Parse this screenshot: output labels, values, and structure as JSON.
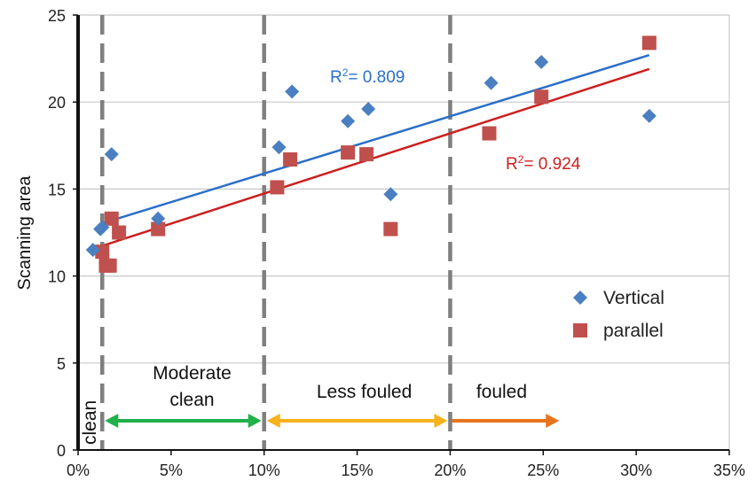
{
  "chart_data": {
    "type": "scatter",
    "title": "",
    "xlabel": "",
    "ylabel": "Scanning area",
    "xlim": [
      0,
      35
    ],
    "ylim": [
      0,
      25
    ],
    "xticks": [
      "0%",
      "5%",
      "10%",
      "15%",
      "20%",
      "25%",
      "30%",
      "35%"
    ],
    "yticks": [
      "0",
      "5",
      "10",
      "15",
      "20",
      "25"
    ],
    "grid": "horizontal",
    "legend_position": "right",
    "series": [
      {
        "name": "Vertical",
        "marker": "diamond",
        "color": "#4a7fc1",
        "points": [
          [
            0.8,
            11.5
          ],
          [
            1.2,
            12.7
          ],
          [
            1.3,
            12.8
          ],
          [
            1.8,
            17.0
          ],
          [
            4.3,
            13.3
          ],
          [
            10.8,
            17.4
          ],
          [
            11.5,
            20.6
          ],
          [
            14.5,
            18.9
          ],
          [
            15.6,
            19.6
          ],
          [
            16.8,
            14.7
          ],
          [
            22.2,
            21.1
          ],
          [
            24.9,
            22.3
          ],
          [
            30.7,
            19.2
          ]
        ],
        "fit": {
          "r2_label": "R",
          "r2_sup": "2",
          "r2_value": "= 0.809",
          "line_color": "#2a6fc9",
          "from": [
            1.2,
            13.0
          ],
          "to": [
            30.7,
            22.7
          ]
        }
      },
      {
        "name": "parallel",
        "marker": "square",
        "color": "#c0504d",
        "points": [
          [
            1.3,
            11.4
          ],
          [
            1.5,
            10.6
          ],
          [
            1.7,
            10.6
          ],
          [
            1.8,
            13.3
          ],
          [
            2.2,
            12.5
          ],
          [
            4.3,
            12.7
          ],
          [
            10.7,
            15.1
          ],
          [
            11.4,
            16.7
          ],
          [
            14.5,
            17.1
          ],
          [
            15.5,
            17.0
          ],
          [
            16.8,
            12.7
          ],
          [
            22.1,
            18.2
          ],
          [
            24.9,
            20.3
          ],
          [
            30.7,
            23.4
          ]
        ],
        "fit": {
          "r2_label": "R",
          "r2_sup": "2",
          "r2_value": "= 0.924",
          "line_color": "#cc1f1f",
          "from": [
            1.2,
            11.7
          ],
          "to": [
            30.7,
            21.9
          ]
        }
      }
    ],
    "zones": [
      {
        "label": "clean",
        "color": "#111111"
      },
      {
        "label_lines": [
          "Moderate",
          "clean"
        ],
        "from": 1.3,
        "to": 10,
        "color": "#22b04b"
      },
      {
        "label": "Less fouled",
        "from": 10,
        "to": 20,
        "color": "#f5b21a"
      },
      {
        "label": "fouled",
        "from": 20,
        "to": 26,
        "color": "#e8741e"
      }
    ],
    "divider_lines_x": [
      1.3,
      10,
      20
    ],
    "divider_color": "#7f7f7f"
  }
}
